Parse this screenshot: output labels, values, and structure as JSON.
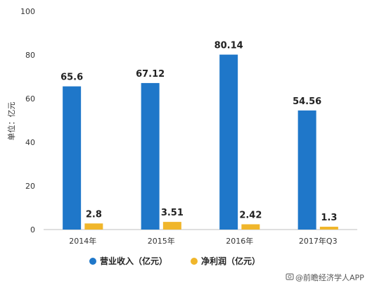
{
  "chart_data": {
    "type": "bar",
    "categories": [
      "2014年",
      "2015年",
      "2016年",
      "2017年Q3"
    ],
    "series": [
      {
        "name": "营业收入（亿元）",
        "values": [
          65.6,
          67.12,
          80.14,
          54.56
        ],
        "color": "#1f77c9"
      },
      {
        "name": "净利润（亿元）",
        "values": [
          2.8,
          3.51,
          2.42,
          1.3
        ],
        "color": "#f0b62b"
      }
    ],
    "data_labels": [
      [
        "65.6",
        "67.12",
        "80.14",
        "54.56"
      ],
      [
        "2.8",
        "3.51",
        "2.42",
        "1.3"
      ]
    ],
    "ylabel": "单位：亿元",
    "ylim": [
      0,
      100
    ],
    "yticks": [
      0,
      20,
      40,
      60,
      80,
      100
    ],
    "grid": false,
    "legend": "bottom-center"
  },
  "footer": {
    "source": "@前瞻经济学人APP",
    "icon": "camera-icon"
  }
}
